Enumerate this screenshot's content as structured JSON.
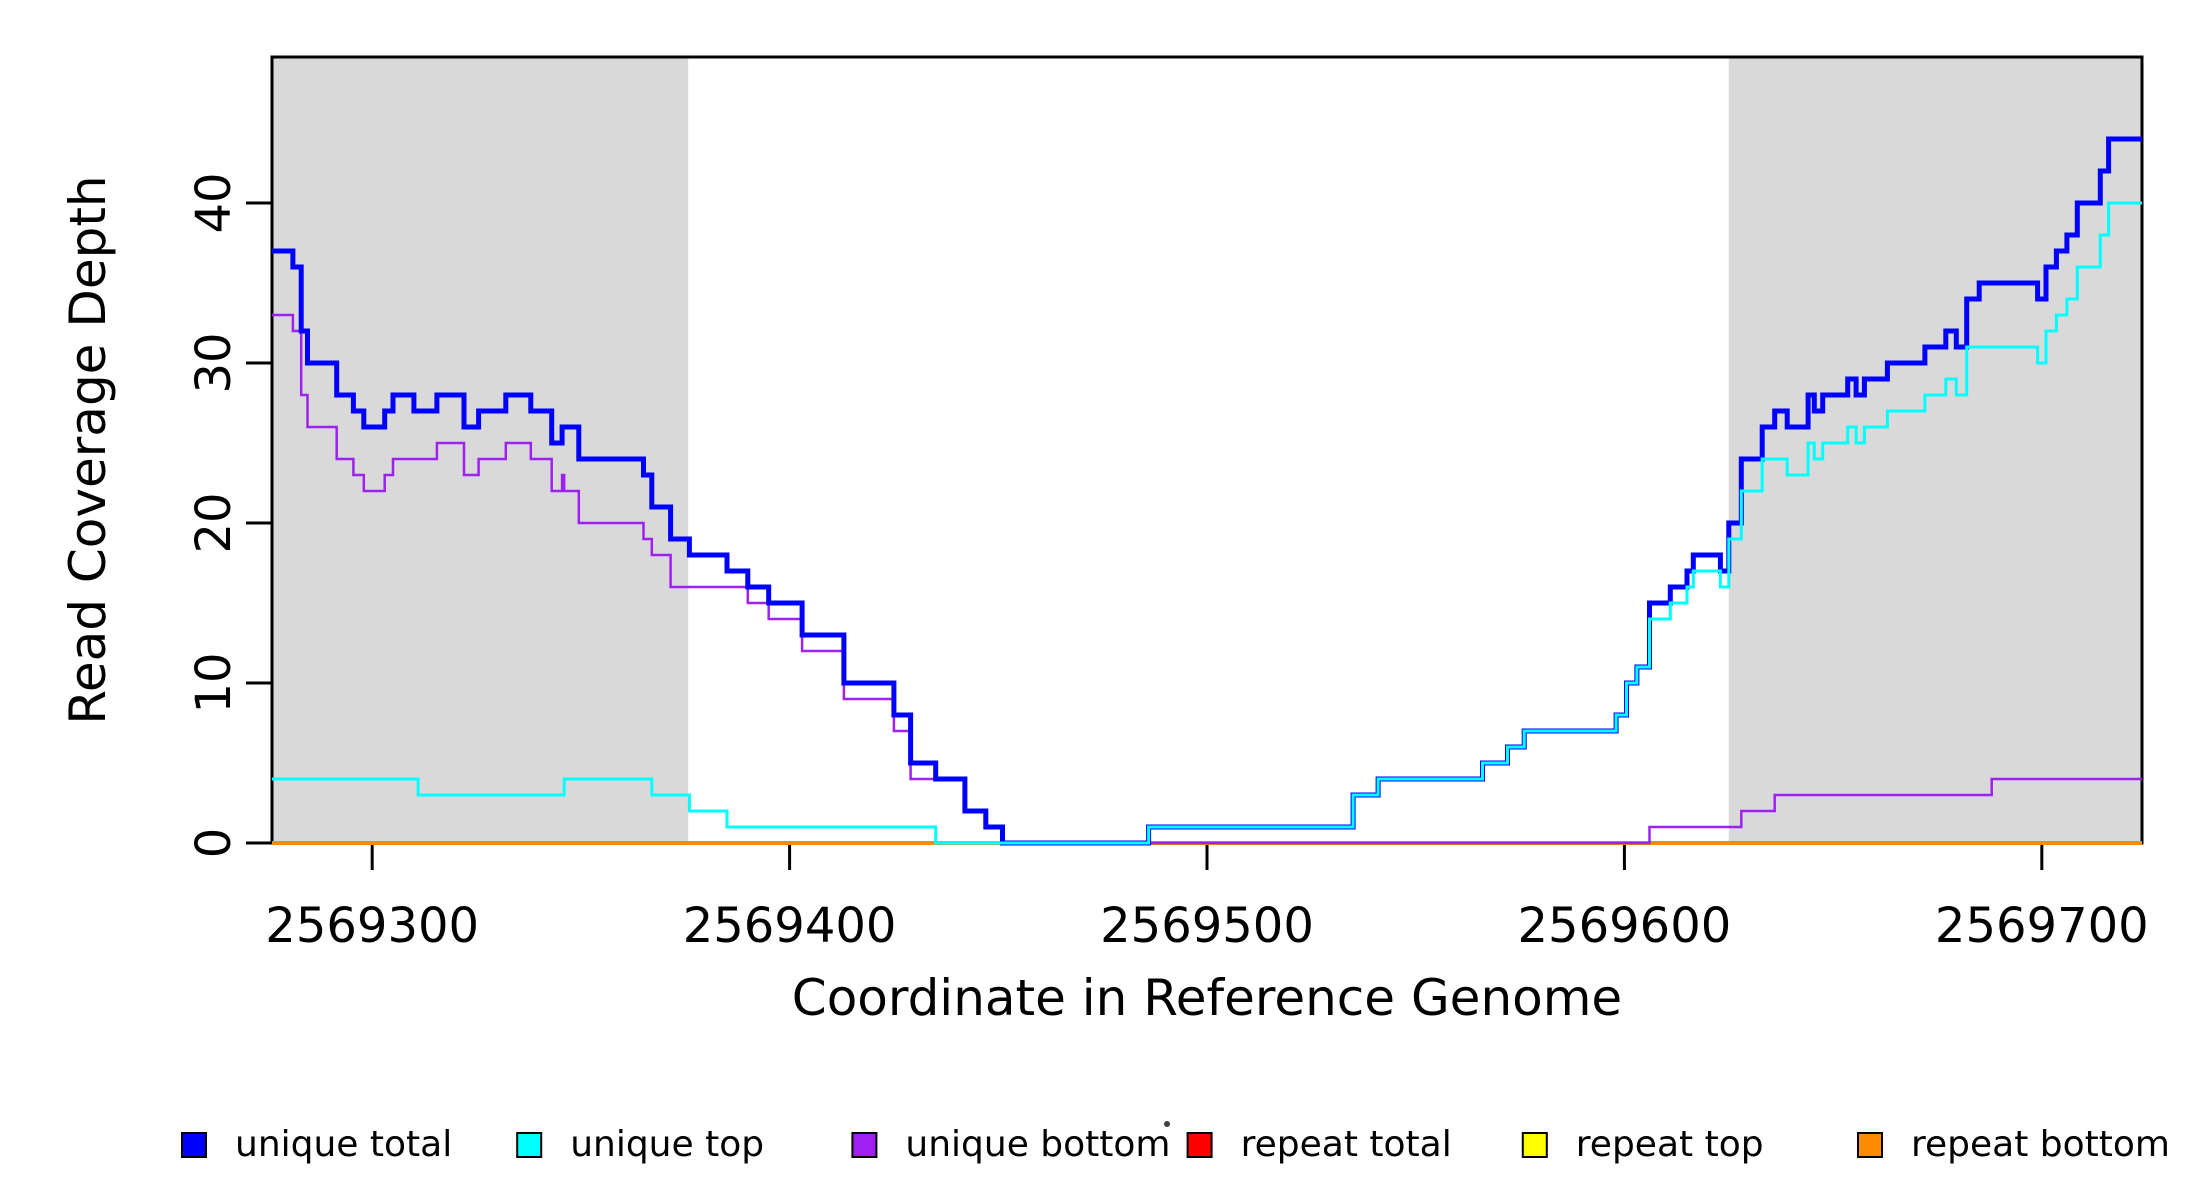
{
  "figure": {
    "plot_background": "#FFFFFF",
    "box_color": "#000000",
    "shade_color": "#D9D9D9",
    "xlim": [
      2569276,
      2569724
    ],
    "ylim": [
      0,
      49.125
    ],
    "shaded_regions": [
      {
        "from": 2569276,
        "to": 2569375.7
      },
      {
        "from": 2569625,
        "to": 2569724
      }
    ]
  },
  "chart_data": {
    "type": "line",
    "step_mode": "post",
    "title": "",
    "xlabel": "Coordinate in Reference Genome",
    "ylabel": "Read Coverage Depth",
    "x_ticks": [
      2569300,
      2569400,
      2569500,
      2569600,
      2569700
    ],
    "x_tick_labels": [
      "2569300",
      "2569400",
      "2569500",
      "2569600",
      "2569700"
    ],
    "y_ticks": [
      0,
      10,
      20,
      30,
      40
    ],
    "y_tick_labels": [
      "0",
      "10",
      "20",
      "30",
      "40"
    ],
    "grid": false,
    "legend_position": "bottom",
    "draw_order": [
      "repeat top",
      "repeat total",
      "repeat bottom",
      "unique bottom",
      "unique total",
      "unique top"
    ],
    "series": [
      {
        "name": "unique total",
        "color": "#0000FF",
        "width": 5,
        "points": [
          [
            2569276,
            37
          ],
          [
            2569281,
            36
          ],
          [
            2569283,
            32
          ],
          [
            2569284.5,
            30
          ],
          [
            2569291.5,
            28
          ],
          [
            2569295.5,
            27
          ],
          [
            2569298,
            26
          ],
          [
            2569303,
            27
          ],
          [
            2569305,
            28
          ],
          [
            2569310,
            27
          ],
          [
            2569315.5,
            28
          ],
          [
            2569322,
            26
          ],
          [
            2569325.5,
            27
          ],
          [
            2569332,
            28
          ],
          [
            2569338,
            27
          ],
          [
            2569343,
            25
          ],
          [
            2569345.5,
            26
          ],
          [
            2569349.5,
            24
          ],
          [
            2569365,
            23
          ],
          [
            2569367,
            21
          ],
          [
            2569371.5,
            19
          ],
          [
            2569376,
            18
          ],
          [
            2569385,
            17
          ],
          [
            2569390,
            16
          ],
          [
            2569395,
            15
          ],
          [
            2569403,
            13
          ],
          [
            2569413,
            10
          ],
          [
            2569425,
            8
          ],
          [
            2569429,
            5
          ],
          [
            2569435,
            4
          ],
          [
            2569442,
            2
          ],
          [
            2569447,
            1
          ],
          [
            2569451,
            0
          ],
          [
            2569486,
            1
          ],
          [
            2569535,
            3
          ],
          [
            2569541,
            4
          ],
          [
            2569566,
            5
          ],
          [
            2569572,
            6
          ],
          [
            2569576,
            7
          ],
          [
            2569598,
            8
          ],
          [
            2569600.5,
            10
          ],
          [
            2569603,
            11
          ],
          [
            2569606,
            15
          ],
          [
            2569611,
            16
          ],
          [
            2569615,
            17
          ],
          [
            2569616.5,
            18
          ],
          [
            2569623,
            17
          ],
          [
            2569625,
            20
          ],
          [
            2569628,
            24
          ],
          [
            2569633,
            26
          ],
          [
            2569636,
            27
          ],
          [
            2569639,
            26
          ],
          [
            2569644,
            28
          ],
          [
            2569645.5,
            27
          ],
          [
            2569647.5,
            28
          ],
          [
            2569653.5,
            29
          ],
          [
            2569655.5,
            28
          ],
          [
            2569657.5,
            29
          ],
          [
            2569663,
            30
          ],
          [
            2569672,
            31
          ],
          [
            2569677,
            32
          ],
          [
            2569679.5,
            31
          ],
          [
            2569682,
            34
          ],
          [
            2569685,
            35
          ],
          [
            2569699,
            34
          ],
          [
            2569701,
            36
          ],
          [
            2569703.5,
            37
          ],
          [
            2569706,
            38
          ],
          [
            2569708.5,
            40
          ],
          [
            2569714,
            42
          ],
          [
            2569716,
            44
          ]
        ]
      },
      {
        "name": "unique top",
        "color": "#00FFFF",
        "width": 3,
        "points": [
          [
            2569276,
            4
          ],
          [
            2569311,
            3
          ],
          [
            2569346,
            4
          ],
          [
            2569367,
            3
          ],
          [
            2569376,
            2
          ],
          [
            2569385,
            1
          ],
          [
            2569435,
            0
          ],
          [
            2569486,
            1
          ],
          [
            2569535,
            3
          ],
          [
            2569541,
            4
          ],
          [
            2569566,
            5
          ],
          [
            2569572,
            6
          ],
          [
            2569576,
            7
          ],
          [
            2569598,
            8
          ],
          [
            2569600.5,
            10
          ],
          [
            2569603,
            11
          ],
          [
            2569606,
            14
          ],
          [
            2569611,
            15
          ],
          [
            2569615,
            16
          ],
          [
            2569616.5,
            17
          ],
          [
            2569623,
            16
          ],
          [
            2569625,
            19
          ],
          [
            2569628,
            22
          ],
          [
            2569633,
            24
          ],
          [
            2569639,
            23
          ],
          [
            2569644,
            25
          ],
          [
            2569645.5,
            24
          ],
          [
            2569647.5,
            25
          ],
          [
            2569653.5,
            26
          ],
          [
            2569655.5,
            25
          ],
          [
            2569657.5,
            26
          ],
          [
            2569663,
            27
          ],
          [
            2569672,
            28
          ],
          [
            2569677,
            29
          ],
          [
            2569679.5,
            28
          ],
          [
            2569682,
            31
          ],
          [
            2569699,
            30
          ],
          [
            2569701,
            32
          ],
          [
            2569703.5,
            33
          ],
          [
            2569706,
            34
          ],
          [
            2569708.5,
            36
          ],
          [
            2569714,
            38
          ],
          [
            2569716,
            40
          ]
        ]
      },
      {
        "name": "unique bottom",
        "color": "#A020F0",
        "width": 2.5,
        "points": [
          [
            2569276,
            33
          ],
          [
            2569281,
            32
          ],
          [
            2569283,
            28
          ],
          [
            2569284.5,
            26
          ],
          [
            2569291.5,
            24
          ],
          [
            2569295.5,
            23
          ],
          [
            2569298,
            22
          ],
          [
            2569303,
            23
          ],
          [
            2569305,
            24
          ],
          [
            2569315.5,
            25
          ],
          [
            2569322,
            23
          ],
          [
            2569325.5,
            24
          ],
          [
            2569332,
            25
          ],
          [
            2569338,
            24
          ],
          [
            2569343,
            22
          ],
          [
            2569345.5,
            23
          ],
          [
            2569346,
            22
          ],
          [
            2569349.5,
            20
          ],
          [
            2569365,
            19
          ],
          [
            2569367,
            18
          ],
          [
            2569371.5,
            16
          ],
          [
            2569390,
            15
          ],
          [
            2569395,
            14
          ],
          [
            2569403,
            12
          ],
          [
            2569413,
            9
          ],
          [
            2569425,
            7
          ],
          [
            2569429,
            4
          ],
          [
            2569442,
            2
          ],
          [
            2569447,
            1
          ],
          [
            2569451,
            0
          ],
          [
            2569606,
            1
          ],
          [
            2569628,
            2
          ],
          [
            2569636,
            3
          ],
          [
            2569688,
            4
          ]
        ]
      },
      {
        "name": "repeat total",
        "color": "#FF0000",
        "width": 3,
        "points": [
          [
            2569276,
            0
          ]
        ]
      },
      {
        "name": "repeat top",
        "color": "#FFFF00",
        "width": 3,
        "points": [
          [
            2569276,
            0
          ]
        ]
      },
      {
        "name": "repeat bottom",
        "color": "#FF8C00",
        "width": 4,
        "points": [
          [
            2569276,
            0
          ]
        ]
      }
    ]
  },
  "legend": {
    "items": [
      {
        "label": "unique total",
        "color": "#0000FF"
      },
      {
        "label": "unique top",
        "color": "#00FFFF"
      },
      {
        "label": "unique bottom",
        "color": "#A020F0"
      },
      {
        "label": "repeat total",
        "color": "#FF0000"
      },
      {
        "label": "repeat top",
        "color": "#FFFF00"
      },
      {
        "label": "repeat bottom",
        "color": "#FF8C00"
      }
    ]
  }
}
